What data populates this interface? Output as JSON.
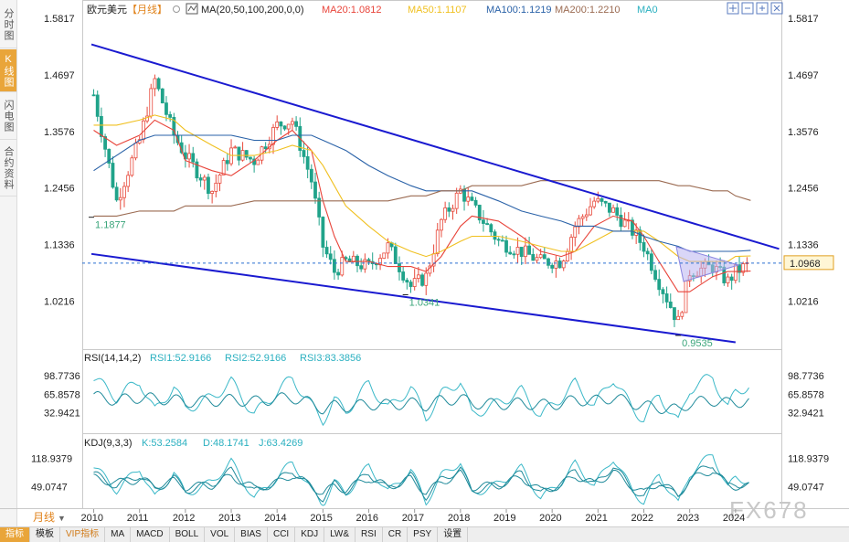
{
  "sidebar": {
    "tabs": [
      {
        "label": "分时图",
        "active": false
      },
      {
        "label": "K线图",
        "active": true
      },
      {
        "label": "闪电图",
        "active": false
      },
      {
        "label": "合约资料",
        "active": false
      }
    ]
  },
  "header": {
    "symbol": "欧元美元",
    "period_tag": "【月线】",
    "ma_params": "MA(20,50,100,200,0,0)",
    "ma20": "MA20:1.0812",
    "ma50": "MA50:1.1107",
    "ma100": "MA100:1.1219",
    "ma200": "MA200:1.2210",
    "ma0": "MA0"
  },
  "toolbar": {
    "icons": [
      "crosshair-icon",
      "zoom-out-icon",
      "zoom-in-icon",
      "close-icon"
    ]
  },
  "period_button": "月线",
  "watermark": "FX678",
  "rsi_panel": {
    "header_title": "RSI(14,14,2)",
    "rsi1": "RSI1:52.9166",
    "rsi2": "RSI2:52.9166",
    "rsi3": "RSI3:83.3856"
  },
  "kdj_panel": {
    "header_title": "KDJ(9,3,3)",
    "k": "K:53.2584",
    "d": "D:48.1741",
    "j": "J:63.4269"
  },
  "bottom_bar": {
    "tabs": [
      "指标",
      "模板",
      "VIP指标",
      "MA",
      "MACD",
      "BOLL",
      "VOL",
      "BIAS",
      "CCI",
      "KDJ",
      "LW&",
      "RSI",
      "CR",
      "PSY",
      "设置"
    ]
  },
  "colors": {
    "up": "#e84a3c",
    "down": "#20a38a",
    "ma20": "#e8443a",
    "ma50": "#f0c020",
    "ma100": "#2a62a8",
    "ma200": "#9b6b52",
    "trendline": "#1a1ad0",
    "rsi": "#2ab0c0",
    "kdj": "#2ab0c0",
    "last_price": "#2a6fd0"
  },
  "chart_data": [
    {
      "type": "candlestick",
      "title": "欧元美元【月线】",
      "x_tick_labels": [
        "2010",
        "2011",
        "2012",
        "2013",
        "2014",
        "2015",
        "2016",
        "2017",
        "2018",
        "2019",
        "2020",
        "2021",
        "2022",
        "2023",
        "2024"
      ],
      "y_tick_labels": [
        "1.5817",
        "1.4697",
        "1.3576",
        "1.2456",
        "1.1336",
        "1.0216"
      ],
      "ylim": [
        0.93,
        1.5817
      ],
      "last_price": "1.0968",
      "annotations": [
        "1.1877",
        "1.0341",
        "0.9535"
      ],
      "x": [
        2010.0,
        2010.5,
        2011.0,
        2011.33,
        2011.75,
        2012.0,
        2012.58,
        2013.0,
        2013.5,
        2014.0,
        2014.33,
        2014.75,
        2015.0,
        2015.25,
        2015.5,
        2016.0,
        2016.42,
        2016.92,
        2017.25,
        2017.58,
        2018.0,
        2018.25,
        2018.83,
        2019.33,
        2019.75,
        2020.2,
        2020.5,
        2020.92,
        2021.33,
        2021.75,
        2022.0,
        2022.33,
        2022.75,
        2023.0,
        2023.5,
        2023.83,
        2024.0,
        2024.33
      ],
      "close": [
        1.43,
        1.22,
        1.34,
        1.46,
        1.35,
        1.31,
        1.24,
        1.32,
        1.3,
        1.37,
        1.38,
        1.26,
        1.13,
        1.08,
        1.1,
        1.09,
        1.13,
        1.05,
        1.07,
        1.18,
        1.24,
        1.21,
        1.14,
        1.12,
        1.1,
        1.1,
        1.17,
        1.22,
        1.2,
        1.16,
        1.13,
        1.06,
        0.98,
        1.08,
        1.09,
        1.06,
        1.08,
        1.095
      ],
      "ma_lines": {
        "MA20": [
          1.36,
          1.33,
          1.35,
          1.38,
          1.36,
          1.3,
          1.28,
          1.27,
          1.3,
          1.34,
          1.36,
          1.32,
          1.22,
          1.15,
          1.1,
          1.1,
          1.09,
          1.09,
          1.08,
          1.11,
          1.17,
          1.19,
          1.18,
          1.15,
          1.12,
          1.11,
          1.12,
          1.17,
          1.19,
          1.18,
          1.15,
          1.1,
          1.04,
          1.04,
          1.07,
          1.08,
          1.08,
          1.081
        ],
        "MA50": [
          1.37,
          1.37,
          1.38,
          1.39,
          1.38,
          1.36,
          1.33,
          1.31,
          1.31,
          1.32,
          1.33,
          1.32,
          1.29,
          1.25,
          1.21,
          1.17,
          1.14,
          1.12,
          1.11,
          1.12,
          1.14,
          1.15,
          1.15,
          1.14,
          1.13,
          1.12,
          1.12,
          1.14,
          1.16,
          1.16,
          1.16,
          1.14,
          1.11,
          1.1,
          1.1,
          1.1,
          1.11,
          1.111
        ],
        "MA100": [
          1.28,
          1.31,
          1.34,
          1.35,
          1.35,
          1.35,
          1.35,
          1.35,
          1.34,
          1.34,
          1.35,
          1.35,
          1.34,
          1.33,
          1.32,
          1.29,
          1.27,
          1.25,
          1.24,
          1.24,
          1.24,
          1.24,
          1.22,
          1.2,
          1.19,
          1.18,
          1.17,
          1.17,
          1.16,
          1.16,
          1.15,
          1.14,
          1.13,
          1.12,
          1.12,
          1.12,
          1.12,
          1.122
        ],
        "MA200": [
          1.19,
          1.19,
          1.2,
          1.2,
          1.2,
          1.21,
          1.21,
          1.21,
          1.22,
          1.22,
          1.22,
          1.22,
          1.22,
          1.22,
          1.22,
          1.22,
          1.22,
          1.23,
          1.23,
          1.24,
          1.24,
          1.25,
          1.25,
          1.25,
          1.26,
          1.26,
          1.26,
          1.26,
          1.26,
          1.26,
          1.26,
          1.26,
          1.25,
          1.25,
          1.24,
          1.24,
          1.23,
          1.221
        ]
      },
      "trendlines": [
        {
          "x": [
            2009.95,
            2024.95
          ],
          "y": [
            1.53,
            1.125
          ]
        },
        {
          "x": [
            2009.95,
            2024.0
          ],
          "y": [
            1.115,
            0.94
          ]
        }
      ]
    },
    {
      "type": "line",
      "title": "RSI(14,14,2)",
      "y_tick_labels": [
        "98.7736",
        "65.8578",
        "32.9421"
      ],
      "ylim": [
        0,
        120
      ],
      "series": [
        {
          "name": "RSI3",
          "values": [
            95,
            60,
            90,
            35,
            80,
            40,
            60,
            88,
            30,
            70,
            95,
            45,
            20,
            55,
            35,
            85,
            40,
            78,
            25,
            65,
            90,
            30,
            50,
            72,
            28,
            60,
            85,
            45,
            95,
            40,
            22,
            65,
            15,
            75,
            98,
            40,
            70,
            83
          ]
        },
        {
          "name": "RSI1",
          "values": [
            62,
            55,
            60,
            58,
            56,
            52,
            54,
            56,
            53,
            58,
            60,
            50,
            40,
            45,
            44,
            48,
            47,
            50,
            46,
            55,
            58,
            50,
            48,
            50,
            47,
            49,
            56,
            54,
            60,
            50,
            45,
            42,
            38,
            50,
            55,
            50,
            52,
            53
          ]
        }
      ]
    },
    {
      "type": "line",
      "title": "KDJ(9,3,3)",
      "y_tick_labels": [
        "118.9379",
        "49.0747"
      ],
      "ylim": [
        0,
        140
      ],
      "series": [
        {
          "name": "J",
          "values": [
            100,
            40,
            95,
            20,
            85,
            30,
            60,
            110,
            20,
            70,
            110,
            40,
            5,
            60,
            30,
            100,
            35,
            90,
            10,
            75,
            110,
            30,
            55,
            95,
            20,
            60,
            105,
            50,
            120,
            40,
            10,
            80,
            5,
            80,
            130,
            45,
            70,
            63
          ]
        },
        {
          "name": "K",
          "values": [
            80,
            50,
            78,
            40,
            70,
            40,
            55,
            88,
            35,
            62,
            90,
            45,
            20,
            55,
            38,
            82,
            42,
            76,
            25,
            66,
            92,
            40,
            52,
            82,
            30,
            56,
            88,
            52,
            100,
            45,
            22,
            70,
            18,
            72,
            105,
            48,
            56,
            53
          ]
        },
        {
          "name": "D",
          "values": [
            70,
            58,
            66,
            52,
            62,
            48,
            52,
            75,
            45,
            58,
            78,
            50,
            32,
            50,
            42,
            70,
            48,
            68,
            34,
            60,
            80,
            48,
            52,
            72,
            38,
            54,
            76,
            55,
            85,
            50,
            32,
            60,
            28,
            65,
            90,
            52,
            50,
            48
          ]
        }
      ]
    }
  ]
}
